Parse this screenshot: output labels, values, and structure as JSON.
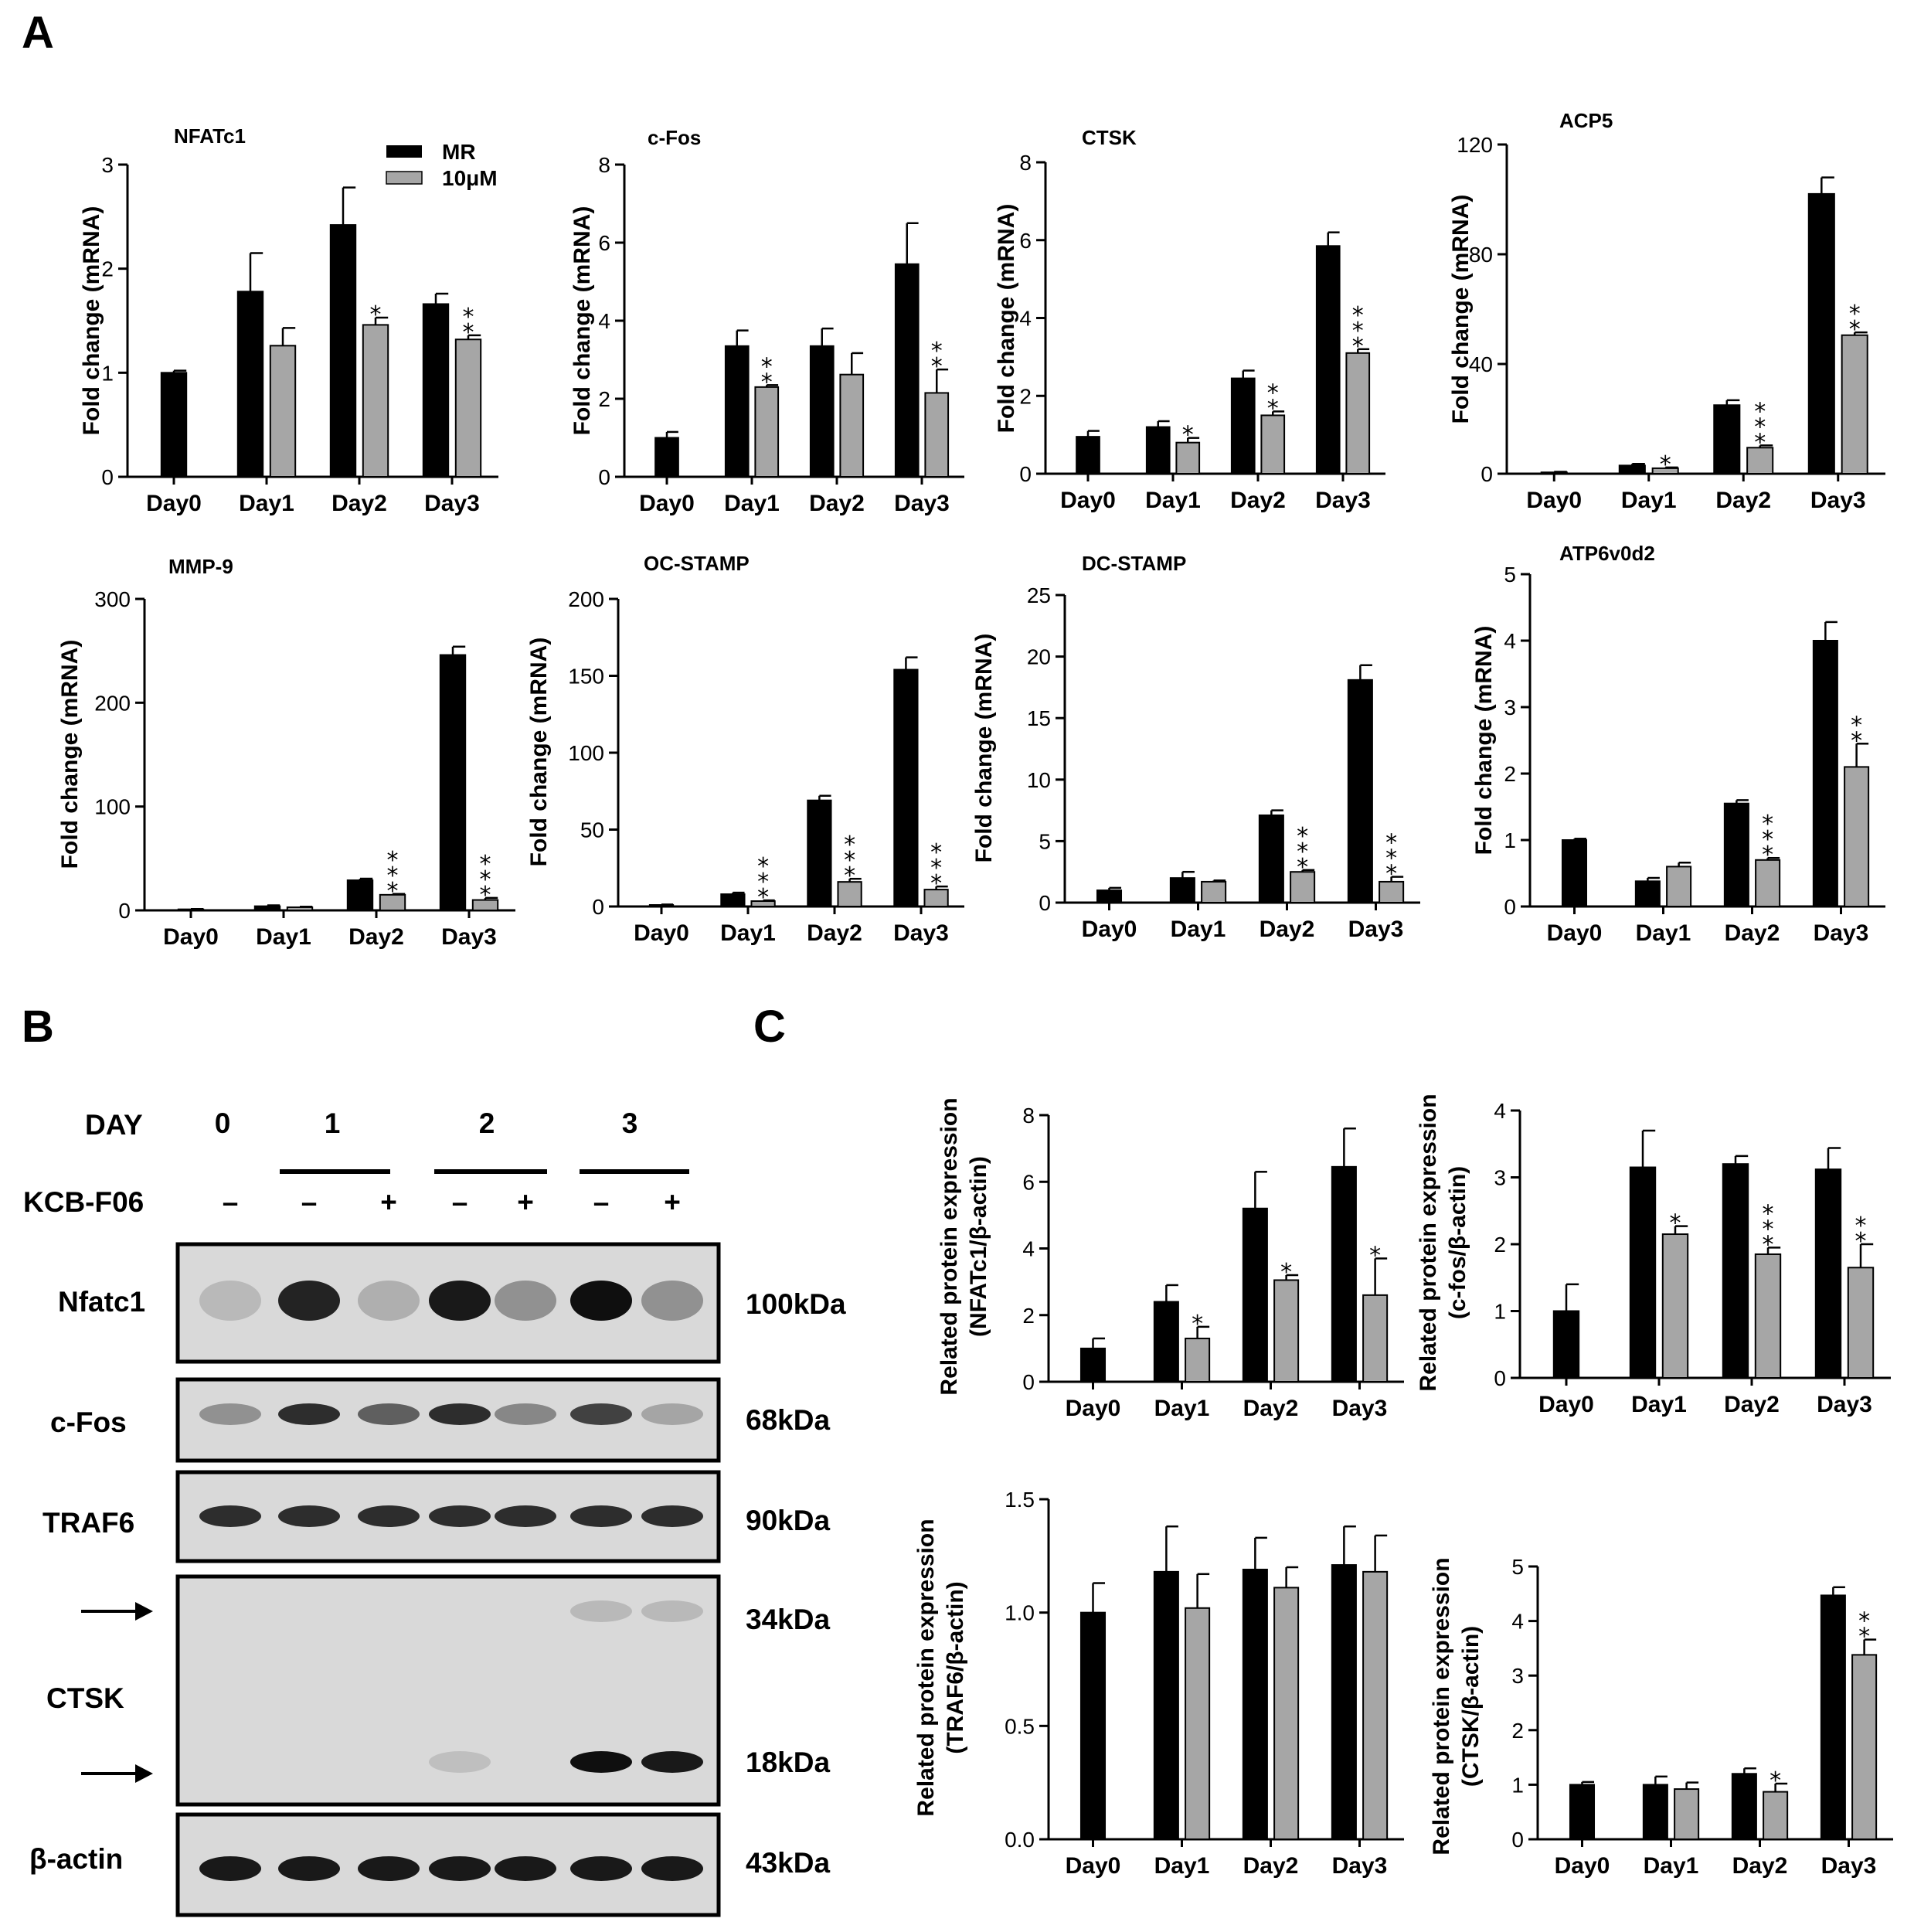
{
  "panels": {
    "a": "A",
    "b": "B",
    "c": "C"
  },
  "colors": {
    "mr": "#000000",
    "treated": "#a6a6a6",
    "blot_bg": "#d9d9d9"
  },
  "legend": {
    "mr": "MR",
    "treated": "10μM"
  },
  "blot": {
    "day_label": "DAY",
    "days": [
      "0",
      "1",
      "2",
      "3"
    ],
    "compound_label": "KCB-F06",
    "signs": [
      "–",
      "–",
      "+",
      "–",
      "+",
      "–",
      "+"
    ],
    "rows": [
      {
        "name": "Nfatc1",
        "kda": "100kDa"
      },
      {
        "name": "c-Fos",
        "kda": "68kDa"
      },
      {
        "name": "TRAF6",
        "kda": "90kDa"
      },
      {
        "name": "CTSK",
        "kda": "",
        "kda_top": "34kDa",
        "kda_bottom": "18kDa"
      },
      {
        "name": "β-actin",
        "kda": "43kDa"
      }
    ],
    "band_intensity": [
      [
        0.15,
        0.9,
        0.2,
        0.95,
        0.35,
        1.0,
        0.35
      ],
      [
        0.35,
        0.85,
        0.6,
        0.85,
        0.4,
        0.75,
        0.25
      ],
      [
        0.85,
        0.85,
        0.85,
        0.85,
        0.85,
        0.85,
        0.85
      ],
      [
        0.0,
        0.0,
        0.0,
        0.0,
        0.0,
        0.15,
        0.15
      ],
      [
        0.0,
        0.0,
        0.0,
        0.12,
        0.0,
        1.0,
        0.95
      ],
      [
        0.95,
        0.95,
        0.95,
        0.95,
        0.95,
        0.95,
        0.95
      ]
    ]
  },
  "chart_data": [
    {
      "type": "bar",
      "title": "NFATc1",
      "ylabel": "Fold change (mRNA)",
      "ylim": [
        0,
        3
      ],
      "yticks": [
        "0",
        "1",
        "2",
        "3"
      ],
      "categories": [
        "Day0",
        "Day1",
        "Day2",
        "Day3"
      ],
      "series": [
        {
          "name": "MR",
          "values": [
            1.0,
            1.78,
            2.42,
            1.66
          ],
          "errors": [
            0.02,
            0.37,
            0.36,
            0.1
          ]
        },
        {
          "name": "10μM",
          "values": [
            null,
            1.26,
            1.46,
            1.32
          ],
          "errors": [
            null,
            0.17,
            0.07,
            0.04
          ]
        }
      ],
      "significance": [
        "",
        "",
        "*",
        "**"
      ]
    },
    {
      "type": "bar",
      "title": "c-Fos",
      "ylabel": "Fold change (mRNA)",
      "ylim": [
        0,
        8
      ],
      "yticks": [
        "0",
        "2",
        "4",
        "6",
        "8"
      ],
      "categories": [
        "Day0",
        "Day1",
        "Day2",
        "Day3"
      ],
      "series": [
        {
          "name": "MR",
          "values": [
            1.0,
            3.35,
            3.35,
            5.45
          ],
          "errors": [
            0.15,
            0.4,
            0.45,
            1.05
          ]
        },
        {
          "name": "10μM",
          "values": [
            null,
            2.3,
            2.62,
            2.15
          ],
          "errors": [
            null,
            0.05,
            0.55,
            0.6
          ]
        }
      ],
      "significance": [
        "",
        "**",
        "",
        "**"
      ]
    },
    {
      "type": "bar",
      "title": "CTSK",
      "ylabel": "Fold change (mRNA)",
      "ylim": [
        0,
        8
      ],
      "yticks": [
        "0",
        "2",
        "4",
        "6",
        "8"
      ],
      "categories": [
        "Day0",
        "Day1",
        "Day2",
        "Day3"
      ],
      "series": [
        {
          "name": "MR",
          "values": [
            0.95,
            1.2,
            2.45,
            5.85
          ],
          "errors": [
            0.15,
            0.15,
            0.2,
            0.35
          ]
        },
        {
          "name": "10μM",
          "values": [
            null,
            0.8,
            1.5,
            3.1
          ],
          "errors": [
            null,
            0.12,
            0.1,
            0.1
          ]
        }
      ],
      "significance": [
        "",
        "*",
        "**",
        "***"
      ]
    },
    {
      "type": "bar",
      "title": "ACP5",
      "ylabel": "Fold change (mRNA)",
      "ylim": [
        0,
        120
      ],
      "yticks": [
        "0",
        "40",
        "80",
        "120"
      ],
      "categories": [
        "Day0",
        "Day1",
        "Day2",
        "Day3"
      ],
      "series": [
        {
          "name": "MR",
          "values": [
            0.5,
            3,
            25,
            102
          ],
          "errors": [
            0.2,
            0.6,
            1.8,
            6
          ]
        },
        {
          "name": "10μM",
          "values": [
            null,
            2,
            9.5,
            50.5
          ],
          "errors": [
            null,
            0.3,
            0.8,
            1
          ]
        }
      ],
      "significance": [
        "",
        "*",
        "***",
        "**"
      ]
    },
    {
      "type": "bar",
      "title": "MMP-9",
      "ylabel": "Fold change (mRNA)",
      "ylim": [
        0,
        300
      ],
      "yticks": [
        "0",
        "100",
        "200",
        "300"
      ],
      "categories": [
        "Day0",
        "Day1",
        "Day2",
        "Day3"
      ],
      "series": [
        {
          "name": "MR",
          "values": [
            1,
            4,
            29,
            246
          ],
          "errors": [
            0.3,
            0.8,
            1.5,
            8
          ]
        },
        {
          "name": "10μM",
          "values": [
            null,
            3,
            15,
            10
          ],
          "errors": [
            null,
            0.5,
            0.8,
            2
          ]
        }
      ],
      "significance": [
        "",
        "",
        "***",
        "***"
      ]
    },
    {
      "type": "bar",
      "title": "OC-STAMP",
      "ylabel": "Fold change (mRNA)",
      "ylim": [
        0,
        200
      ],
      "yticks": [
        "0",
        "50",
        "100",
        "150",
        "200"
      ],
      "categories": [
        "Day0",
        "Day1",
        "Day2",
        "Day3"
      ],
      "series": [
        {
          "name": "MR",
          "values": [
            1,
            8,
            69,
            154
          ],
          "errors": [
            0.3,
            1,
            3,
            8
          ]
        },
        {
          "name": "10μM",
          "values": [
            null,
            3.5,
            16,
            11
          ],
          "errors": [
            null,
            0.5,
            2,
            2
          ]
        }
      ],
      "significance": [
        "",
        "***",
        "***",
        "***"
      ]
    },
    {
      "type": "bar",
      "title": "DC-STAMP",
      "ylabel": "Fold change (mRNA)",
      "ylim": [
        0,
        25
      ],
      "yticks": [
        "0",
        "5",
        "10",
        "15",
        "20",
        "25"
      ],
      "categories": [
        "Day0",
        "Day1",
        "Day2",
        "Day3"
      ],
      "series": [
        {
          "name": "MR",
          "values": [
            1.0,
            2.0,
            7.1,
            18.1
          ],
          "errors": [
            0.2,
            0.5,
            0.4,
            1.2
          ]
        },
        {
          "name": "10μM",
          "values": [
            null,
            1.7,
            2.5,
            1.7
          ],
          "errors": [
            null,
            0.1,
            0.15,
            0.4
          ]
        }
      ],
      "significance": [
        "",
        "",
        "***",
        "***"
      ]
    },
    {
      "type": "bar",
      "title": "ATP6v0d2",
      "ylabel": "Fold change (mRNA)",
      "ylim": [
        0,
        5
      ],
      "yticks": [
        "0",
        "1",
        "2",
        "3",
        "4",
        "5"
      ],
      "categories": [
        "Day0",
        "Day1",
        "Day2",
        "Day3"
      ],
      "series": [
        {
          "name": "MR",
          "values": [
            1.0,
            0.38,
            1.55,
            4.0
          ],
          "errors": [
            0.02,
            0.05,
            0.05,
            0.28
          ]
        },
        {
          "name": "10μM",
          "values": [
            null,
            0.6,
            0.7,
            2.1
          ],
          "errors": [
            null,
            0.06,
            0.03,
            0.35
          ]
        }
      ],
      "significance": [
        "",
        "",
        "***",
        "**"
      ]
    },
    {
      "type": "bar",
      "title": "",
      "ylabel": [
        "Related protein expression",
        "(NFATc1/β-actin)"
      ],
      "ylim": [
        0,
        8
      ],
      "yticks": [
        "0",
        "2",
        "4",
        "6",
        "8"
      ],
      "categories": [
        "Day0",
        "Day1",
        "Day2",
        "Day3"
      ],
      "series": [
        {
          "name": "MR",
          "values": [
            1.0,
            2.4,
            5.2,
            6.45
          ],
          "errors": [
            0.3,
            0.5,
            1.1,
            1.15
          ]
        },
        {
          "name": "10μM",
          "values": [
            null,
            1.3,
            3.05,
            2.6
          ],
          "errors": [
            null,
            0.35,
            0.15,
            1.1
          ]
        }
      ],
      "significance": [
        "",
        "*",
        "*",
        "*"
      ]
    },
    {
      "type": "bar",
      "title": "",
      "ylabel": [
        "Related protein expression",
        "(c-fos/β-actin)"
      ],
      "ylim": [
        0,
        4
      ],
      "yticks": [
        "0",
        "1",
        "2",
        "3",
        "4"
      ],
      "categories": [
        "Day0",
        "Day1",
        "Day2",
        "Day3"
      ],
      "series": [
        {
          "name": "MR",
          "values": [
            1.0,
            3.15,
            3.2,
            3.12
          ],
          "errors": [
            0.4,
            0.55,
            0.12,
            0.32
          ]
        },
        {
          "name": "10μM",
          "values": [
            null,
            2.15,
            1.85,
            1.65
          ],
          "errors": [
            null,
            0.12,
            0.1,
            0.35
          ]
        }
      ],
      "significance": [
        "",
        "*",
        "***",
        "**"
      ]
    },
    {
      "type": "bar",
      "title": "",
      "ylabel": [
        "Related protein expression",
        "(TRAF6/β-actin)"
      ],
      "ylim": [
        0,
        1.5
      ],
      "yticks": [
        "0.0",
        "0.5",
        "1.0",
        "1.5"
      ],
      "categories": [
        "Day0",
        "Day1",
        "Day2",
        "Day3"
      ],
      "series": [
        {
          "name": "MR",
          "values": [
            1.0,
            1.18,
            1.19,
            1.21
          ],
          "errors": [
            0.13,
            0.2,
            0.14,
            0.17
          ]
        },
        {
          "name": "10μM",
          "values": [
            null,
            1.02,
            1.11,
            1.18
          ],
          "errors": [
            null,
            0.15,
            0.09,
            0.16
          ]
        }
      ],
      "significance": [
        "",
        "",
        "",
        ""
      ]
    },
    {
      "type": "bar",
      "title": "",
      "ylabel": [
        "Related protein expression",
        "(CTSK/β-actin)"
      ],
      "ylim": [
        0,
        5
      ],
      "yticks": [
        "0",
        "1",
        "2",
        "3",
        "4",
        "5"
      ],
      "categories": [
        "Day0",
        "Day1",
        "Day2",
        "Day3"
      ],
      "series": [
        {
          "name": "MR",
          "values": [
            1.0,
            1.0,
            1.2,
            4.47
          ],
          "errors": [
            0.05,
            0.15,
            0.1,
            0.15
          ]
        },
        {
          "name": "10μM",
          "values": [
            null,
            0.92,
            0.87,
            3.38
          ],
          "errors": [
            null,
            0.12,
            0.15,
            0.28
          ]
        }
      ],
      "significance": [
        "",
        "",
        "*",
        "**"
      ]
    }
  ]
}
